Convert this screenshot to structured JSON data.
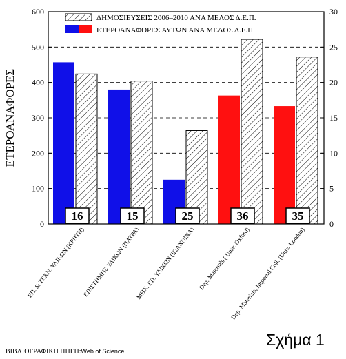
{
  "chart_data": {
    "type": "bar",
    "categories": [
      "ΕΠ. & ΤΕΧΝ. ΥΛΙΚΩΝ (ΚΡΗΤΗ)",
      "ΕΠΙΣΤΗΜΗΣ ΥΛΙΚΩΝ (ΠΑΤΡΑ)",
      "ΜΗΧ. ΕΠ. ΥΛΙΚΩΝ (ΙΩΑΝΝΙΝΑ)",
      "Dep. Materials ( Univ. Oxford)",
      "Dep. Materials, Imperial Coll. (Univ. London)"
    ],
    "counts": [
      "16",
      "15",
      "25",
      "36",
      "35"
    ],
    "series": [
      {
        "name": "ΕΤΕΡΟΑΝΑΦΟΡΕΣ ΑΥΤΩΝ ΑΝΑ ΜΕΛΟΣ Δ.Ε.Π.",
        "axis": "left",
        "values": [
          457,
          380,
          125,
          363,
          333
        ],
        "colors": [
          "#1010e8",
          "#1010e8",
          "#1010e8",
          "#ff1010",
          "#ff1010"
        ]
      },
      {
        "name": "ΔΗΜΟΣΙΕΥΣΕΙΣ 2006–2010 ΑΝΑ ΜΕΛΟΣ Δ.Ε.Π.",
        "axis": "right",
        "values": [
          21.2,
          20.2,
          13.2,
          26.1,
          23.6
        ],
        "pattern": "diagonal-hatch"
      }
    ],
    "ylabel": "ΕΤΕΡΟΑΝΑΦΟΡΕΣ",
    "ylim": [
      0,
      600
    ],
    "yticks": [
      "0",
      "100",
      "200",
      "300",
      "400",
      "500",
      "600"
    ],
    "y2lim": [
      0,
      30
    ],
    "y2ticks": [
      "0",
      "5",
      "10",
      "15",
      "20",
      "25",
      "30"
    ],
    "grid": "dashed-horizontal",
    "legend": "top-right"
  },
  "figure_label": "Σχήμα 1",
  "source": {
    "label": "ΒΙΒΛΙΟΓΡΑΦΙΚΗ ΠΗΓΗ:",
    "value": "Web of Science"
  }
}
